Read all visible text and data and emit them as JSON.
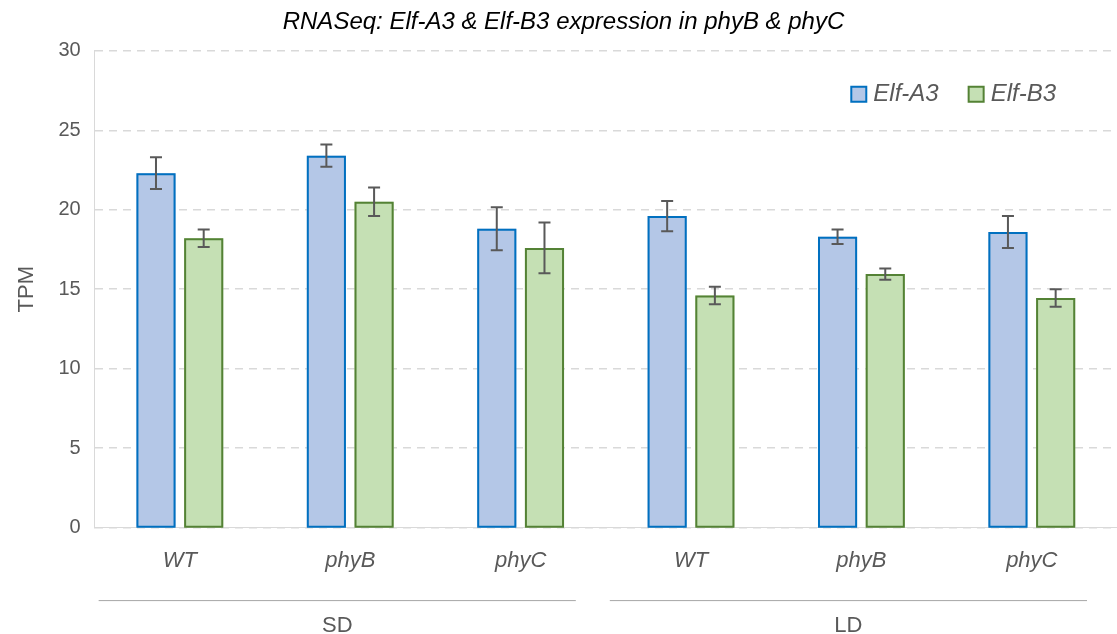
{
  "chart_data": {
    "type": "bar",
    "title": "RNASeq: Elf-A3 & Elf-B3 expression in phyB & phyC",
    "ylabel": "TPM",
    "categories": [
      "WT",
      "phyB",
      "phyC",
      "WT",
      "phyB",
      "phyC"
    ],
    "series": [
      {
        "name": "Elf-A3",
        "color": "#b4c7e7",
        "values": [
          22.3,
          23.4,
          18.8,
          19.6,
          18.3,
          18.6
        ],
        "errors": [
          1.0,
          0.7,
          1.35,
          0.95,
          0.45,
          1.0
        ]
      },
      {
        "name": "Elf-B3",
        "color": "#c5e0b4",
        "values": [
          18.2,
          20.5,
          17.6,
          14.6,
          15.95,
          14.45
        ],
        "errors": [
          0.55,
          0.9,
          1.6,
          0.55,
          0.35,
          0.55
        ]
      }
    ],
    "annotations": [
      "SD",
      "LD"
    ],
    "ylim": [
      0,
      30
    ],
    "yticks": [
      0,
      5,
      10,
      15,
      20,
      25,
      30
    ],
    "grid": "y",
    "legend": "top right"
  }
}
